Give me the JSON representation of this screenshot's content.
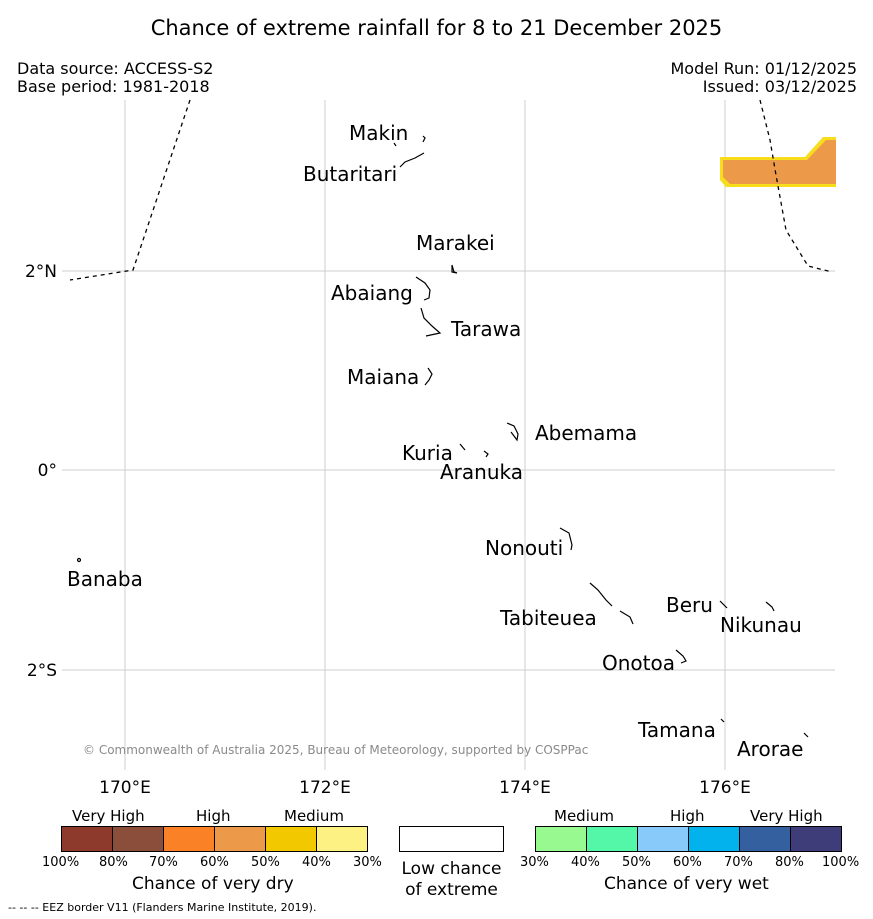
{
  "title": "Chance of extreme rainfall for 8 to 21 December 2025",
  "info": {
    "data_source": "Data source: ACCESS-S2",
    "base_period": "Base period: 1981-2018",
    "model_run": "Model Run: 01/12/2025",
    "issued": "Issued: 03/12/2025"
  },
  "map": {
    "lon_ticks": [
      "170°E",
      "172°E",
      "174°E",
      "176°E"
    ],
    "lat_ticks": [
      "2°N",
      "0°",
      "2°S"
    ],
    "islands": {
      "makin": "Makin",
      "butaritari": "Butaritari",
      "marakei": "Marakei",
      "abaiang": "Abaiang",
      "tarawa": "Tarawa",
      "maiana": "Maiana",
      "abemama": "Abemama",
      "kuria": "Kuria",
      "aranuka": "Aranuka",
      "nonouti": "Nonouti",
      "banaba": "Banaba",
      "beru": "Beru",
      "tabiteuea": "Tabiteuea",
      "nikunau": "Nikunau",
      "onotoa": "Onotoa",
      "tamana": "Tamana",
      "arorae": "Arorae"
    },
    "copyright": "© Commonwealth of Australia 2025, Bureau of Meteorology, supported by COSPPac",
    "colors": {
      "dry_high_fill": "#ec9a49",
      "dry_medium_edge": "#f5d60c"
    }
  },
  "legend": {
    "dry": {
      "cat_very_high": "Very High",
      "cat_high": "High",
      "cat_medium": "Medium",
      "ticks": [
        "100%",
        "80%",
        "70%",
        "60%",
        "50%",
        "40%",
        "30%"
      ],
      "colors": [
        "#8d3a2c",
        "#8b4e3a",
        "#fb8126",
        "#ec9a49",
        "#f2c900",
        "#fdf184"
      ],
      "title": "Chance of very dry"
    },
    "low": {
      "line1": "Low chance",
      "line2": "of extreme"
    },
    "wet": {
      "cat_medium": "Medium",
      "cat_high": "High",
      "cat_very_high": "Very High",
      "ticks": [
        "30%",
        "40%",
        "50%",
        "60%",
        "70%",
        "80%",
        "100%"
      ],
      "colors": [
        "#98f990",
        "#54f7a7",
        "#88cbfa",
        "#01b2ec",
        "#35609f",
        "#3f3c7a"
      ],
      "title": "Chance of very wet"
    }
  },
  "footer": "--  --  -- EEZ border V11 (Flanders Marine Institute, 2019)."
}
